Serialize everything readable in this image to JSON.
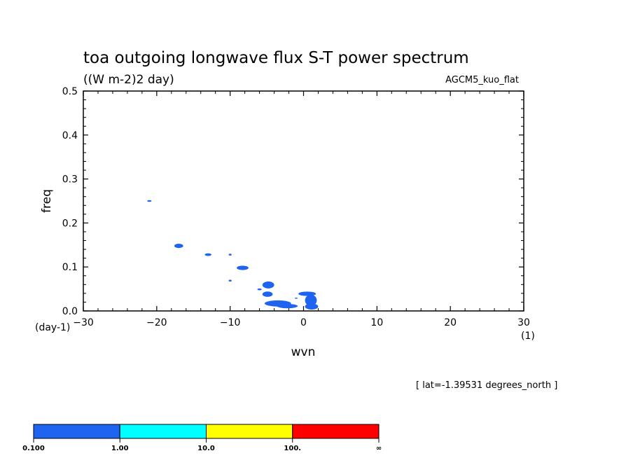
{
  "chart_data": {
    "type": "heatmap",
    "title": "toa outgoing longwave flux S-T power spectrum",
    "units": "((W m-2)2 day)",
    "model": "AGCM5_kuo_flat",
    "xlabel": "wvn",
    "ylabel": "freq",
    "x_unit": "(1)",
    "y_unit": "(day-1)",
    "xlim": [
      -30,
      30
    ],
    "ylim": [
      0,
      0.5
    ],
    "xticks": [
      -30,
      -20,
      -10,
      0,
      10,
      20,
      30
    ],
    "xtick_labels": [
      "−30",
      "−20",
      "−10",
      "0",
      "10",
      "20",
      "30"
    ],
    "yticks": [
      0.0,
      0.1,
      0.2,
      0.3,
      0.4,
      0.5
    ],
    "ytick_labels": [
      "0.0",
      "0.1",
      "0.2",
      "0.3",
      "0.4",
      "0.5"
    ],
    "annotation": "[ lat=-1.39531 degrees_north ]",
    "colorbar": {
      "boundaries": [
        "0.100",
        "1.00",
        "10.0",
        "100.",
        "∞"
      ],
      "colors": [
        "#1e64f0",
        "#00ffff",
        "#ffff00",
        "#ff0000"
      ]
    },
    "filled_regions": [
      {
        "wvn": -21,
        "freq": 0.25,
        "dwvn": 0.3,
        "dfreq": 0.002,
        "level": "0.1-1"
      },
      {
        "wvn": -17,
        "freq": 0.148,
        "dwvn": 0.6,
        "dfreq": 0.005,
        "level": "0.1-1"
      },
      {
        "wvn": -13,
        "freq": 0.128,
        "dwvn": 0.45,
        "dfreq": 0.003,
        "level": "0.1-1"
      },
      {
        "wvn": -10,
        "freq": 0.128,
        "dwvn": 0.2,
        "dfreq": 0.002,
        "level": "0.1-1"
      },
      {
        "wvn": -8.3,
        "freq": 0.098,
        "dwvn": 0.8,
        "dfreq": 0.005,
        "level": "0.1-1"
      },
      {
        "wvn": -10,
        "freq": 0.069,
        "dwvn": 0.2,
        "dfreq": 0.002,
        "level": "0.1-1"
      },
      {
        "wvn": -4.8,
        "freq": 0.059,
        "dwvn": 0.8,
        "dfreq": 0.008,
        "level": "0.1-1"
      },
      {
        "wvn": -6,
        "freq": 0.049,
        "dwvn": 0.3,
        "dfreq": 0.002,
        "level": "0.1-1"
      },
      {
        "wvn": -4.9,
        "freq": 0.038,
        "dwvn": 0.7,
        "dfreq": 0.006,
        "level": "0.1-1"
      },
      {
        "wvn": -3.5,
        "freq": 0.017,
        "dwvn": 1.8,
        "dfreq": 0.007,
        "level": "0.1-1"
      },
      {
        "wvn": -2.2,
        "freq": 0.011,
        "dwvn": 1.4,
        "dfreq": 0.005,
        "level": "0.1-1"
      },
      {
        "wvn": 0.5,
        "freq": 0.039,
        "dwvn": 1.2,
        "dfreq": 0.005,
        "level": "0.1-1"
      },
      {
        "wvn": 1.0,
        "freq": 0.024,
        "dwvn": 0.8,
        "dfreq": 0.013,
        "level": "0.1-1"
      },
      {
        "wvn": 1.1,
        "freq": 0.01,
        "dwvn": 0.9,
        "dfreq": 0.007,
        "level": "0.1-1"
      },
      {
        "wvn": -1.0,
        "freq": 0.029,
        "dwvn": 0.2,
        "dfreq": 0.001,
        "level": "0.1-1"
      }
    ]
  }
}
